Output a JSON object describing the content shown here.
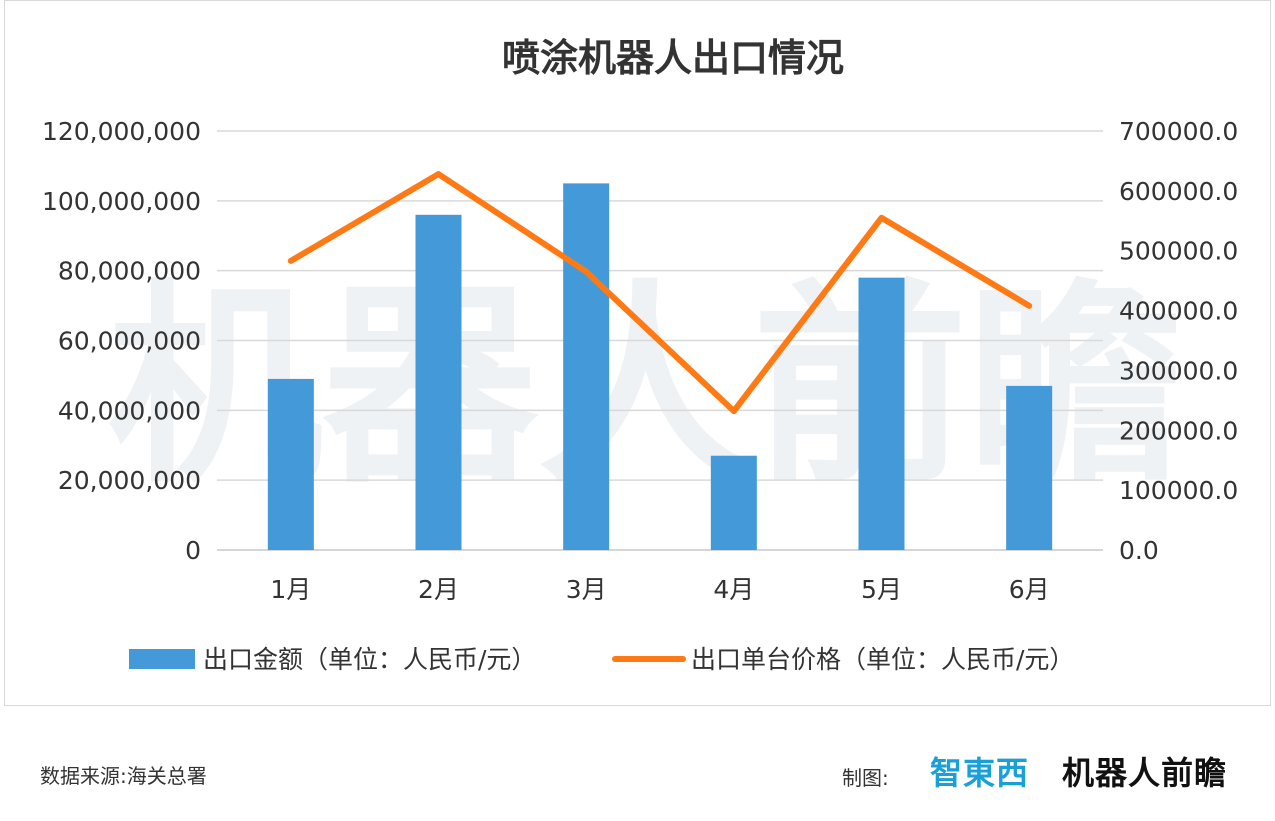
{
  "chart_data": {
    "type": "bar",
    "title": "喷涂机器人出口情况",
    "categories": [
      "1月",
      "2月",
      "3月",
      "4月",
      "5月",
      "6月"
    ],
    "series": [
      {
        "name": "出口金额（单位：人民币/元）",
        "type": "bar",
        "axis": "left",
        "color": "#4499d9",
        "values": [
          49000000,
          96000000,
          105000000,
          27000000,
          78000000,
          47000000
        ]
      },
      {
        "name": "出口单台价格（单位：人民币/元）",
        "type": "line",
        "axis": "right",
        "color": "#ff7a14",
        "values": [
          483000,
          628000,
          465000,
          232000,
          555000,
          408000
        ]
      }
    ],
    "y_left": {
      "ylim": [
        0,
        120000000
      ],
      "ticks": [
        "0",
        "20,000,000",
        "40,000,000",
        "60,000,000",
        "80,000,000",
        "100,000,000",
        "120,000,000"
      ]
    },
    "y_right": {
      "ylim": [
        0,
        700000
      ],
      "ticks": [
        "0.0",
        "100000.0",
        "200000.0",
        "300000.0",
        "400000.0",
        "500000.0",
        "600000.0",
        "700000.0"
      ]
    },
    "grid": true,
    "legend": "bottom",
    "watermark": "机器人前瞻"
  },
  "footer": {
    "source": "数据来源:海关总署",
    "credit_label": "制图:",
    "logo_zhidx": "智東西",
    "logo_robot": "机器人前瞻"
  }
}
